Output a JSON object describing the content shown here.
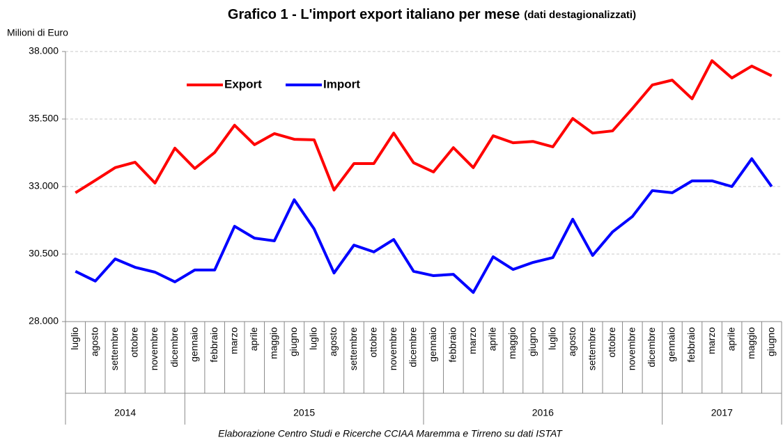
{
  "chart_data": {
    "type": "line",
    "title": "Grafico 1 - L'import export italiano per mese",
    "title_note": "(dati destagionalizzati)",
    "y_label": "Milioni di Euro",
    "source": "Elaborazione Centro Studi e Ricerche CCIAA Maremma e Tirreno su dati ISTAT",
    "categories": [
      "luglio",
      "agosto",
      "settembre",
      "ottobre",
      "novembre",
      "dicembre",
      "gennaio",
      "febbraio",
      "marzo",
      "aprile",
      "maggio",
      "giugno",
      "luglio",
      "agosto",
      "settembre",
      "ottobre",
      "novembre",
      "dicembre",
      "gennaio",
      "febbraio",
      "marzo",
      "aprile",
      "maggio",
      "giugno",
      "luglio",
      "agosto",
      "settembre",
      "ottobre",
      "novembre",
      "dicembre",
      "gennaio",
      "febbraio",
      "marzo",
      "aprile",
      "maggio",
      "giugno"
    ],
    "groups": [
      {
        "label": "2014",
        "count": 6
      },
      {
        "label": "2015",
        "count": 12
      },
      {
        "label": "2016",
        "count": 12
      },
      {
        "label": "2017",
        "count": 6
      }
    ],
    "series": [
      {
        "name": "Export",
        "color": "#ff0000",
        "values": [
          32770,
          33230,
          33700,
          33900,
          33130,
          34420,
          33670,
          34260,
          35270,
          34550,
          34960,
          34750,
          34730,
          32870,
          33850,
          33850,
          34980,
          33880,
          33540,
          34440,
          33700,
          34880,
          34620,
          34670,
          34470,
          35520,
          34980,
          35060,
          35890,
          36760,
          36940,
          36250,
          37660,
          37020,
          37460,
          37100
        ]
      },
      {
        "name": "Import",
        "color": "#0000ff",
        "values": [
          29860,
          29500,
          30320,
          30010,
          29830,
          29470,
          29910,
          29910,
          31530,
          31090,
          30990,
          32510,
          31430,
          29800,
          30830,
          30580,
          31040,
          29860,
          29700,
          29750,
          29080,
          30400,
          29930,
          30190,
          30370,
          31790,
          30450,
          31320,
          31890,
          32850,
          32770,
          33210,
          33210,
          33000,
          34030,
          33000
        ]
      }
    ],
    "ylim": [
      28000,
      38000
    ],
    "yticks": [
      {
        "value": 28000,
        "label": "28.000"
      },
      {
        "value": 30500,
        "label": "30.500"
      },
      {
        "value": 33000,
        "label": "33.000"
      },
      {
        "value": 35500,
        "label": "35.500"
      },
      {
        "value": 38000,
        "label": "38.000"
      }
    ],
    "grid": true
  }
}
